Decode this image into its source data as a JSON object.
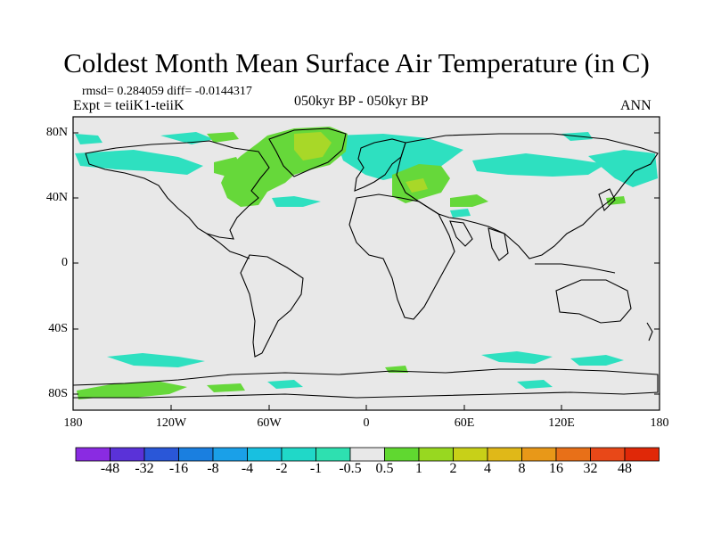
{
  "title": "Coldest Month Mean Surface Air Temperature (in C)",
  "stats": {
    "rmsd_label": "rmsd=",
    "rmsd": "0.284059",
    "diff_label": "diff=",
    "diff": "-0.0144317",
    "text": "rmsd= 0.284059 diff= -0.0144317"
  },
  "experiment": "Expt = teiiK1-teiiK",
  "period": "050kyr BP - 050kyr BP",
  "season": "ANN",
  "lat_labels": [
    "80N",
    "40N",
    "0",
    "40S",
    "80S"
  ],
  "lon_labels": [
    "180",
    "120W",
    "60W",
    "0",
    "60E",
    "120E",
    "180"
  ],
  "colorbar": {
    "labels": [
      "-48",
      "-32",
      "-16",
      "-8",
      "-4",
      "-2",
      "-1",
      "-0.5",
      "0.5",
      "1",
      "2",
      "4",
      "8",
      "16",
      "32",
      "48"
    ],
    "colors": [
      "#8a2be2",
      "#5a32d8",
      "#2a57d8",
      "#1a7fe0",
      "#1aa0e8",
      "#18c0e0",
      "#20d8c8",
      "#2ee0b0",
      "#e8e8e8",
      "#60d830",
      "#98d820",
      "#c8d018",
      "#e0b818",
      "#e89818",
      "#e87018",
      "#e84818",
      "#e02808"
    ]
  },
  "colors": {
    "ocean_land_neutral": "#e8e8e8",
    "anomaly_green": "#66d83a",
    "anomaly_teal": "#2ee0c0",
    "anomaly_yellowgreen": "#a8d828"
  }
}
